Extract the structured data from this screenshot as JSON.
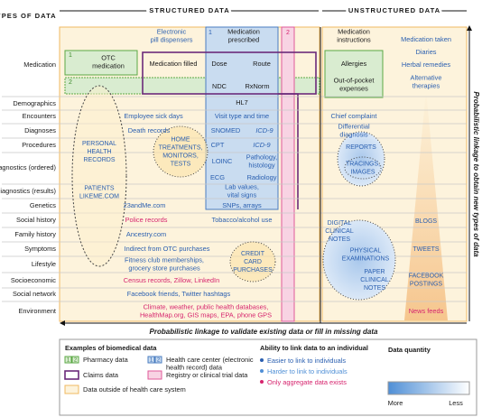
{
  "header": {
    "types": "TYPES OF DATA",
    "structured": "STRUCTURED DATA",
    "unstructured": "UNSTRUCTURED DATA"
  },
  "rows": [
    "Medication",
    "Demographics",
    "Encounters",
    "Diagnoses",
    "Procedures",
    "Diagnostics (ordered)",
    "Diagnostics (results)",
    "Genetics",
    "Social history",
    "Family history",
    "Symptoms",
    "Lifestyle",
    "Socioeconomic",
    "Social network",
    "Environment"
  ],
  "cells": [
    [
      "Electronic",
      "pill dispensers"
    ],
    [
      "Medication",
      "prescribed"
    ],
    [
      "OTC",
      "medication"
    ],
    [
      "Medication filled"
    ],
    [
      "Dose"
    ],
    [
      "Route"
    ],
    [
      "NDC"
    ],
    [
      "RxNorm"
    ],
    [
      "HL7"
    ],
    [
      "Medication",
      "instructions"
    ],
    [
      "Allergies"
    ],
    [
      "Out-of-pocket",
      "expenses"
    ],
    [
      "Medication taken"
    ],
    [
      "Diaries"
    ],
    [
      "Herbal remedies"
    ],
    [
      "Alternative",
      "therapies"
    ],
    [
      "Employee sick days"
    ],
    [
      "Visit type and time"
    ],
    [
      "Chief complaint"
    ],
    [
      "Death records"
    ],
    [
      "SNOMED"
    ],
    [
      "ICD-9"
    ],
    [
      "Differential",
      "diagnosis"
    ],
    [
      "CPT"
    ],
    [
      "ICD-9"
    ],
    [
      "LOINC"
    ],
    [
      "Pathology,",
      "histology"
    ],
    [
      "ECG"
    ],
    [
      "Radiology"
    ],
    [
      "Lab values,",
      "vital signs"
    ],
    [
      "23andMe.com"
    ],
    [
      "SNPs, arrays"
    ],
    [
      "Police records"
    ],
    [
      "Tobacco/alcohol use"
    ],
    [
      "Ancestry.com"
    ],
    [
      "Indirect from OTC purchases"
    ],
    [
      "Fitness club memberships,",
      "grocery store purchases"
    ],
    [
      "Census records, Zillow, LinkedIn"
    ],
    [
      "Facebook friends, Twitter hashtags"
    ],
    [
      "Climate, weather, public health databases,",
      "HealthMap.org, GIS maps, EPA, phone GPS"
    ],
    [
      "News feeds"
    ],
    [
      "PERSONAL",
      "HEALTH",
      "RECORDS"
    ],
    [
      "PATIENTS",
      "LIKEME.COM"
    ],
    [
      "HOME",
      "TREATMENTS,",
      "MONITORS,",
      "TESTS"
    ],
    [
      "REPORTS"
    ],
    [
      "TRACINGS,",
      "IMAGES"
    ],
    [
      "BLOGS"
    ],
    [
      "DIGITAL",
      "CLINICAL",
      "NOTES"
    ],
    [
      "PHYSICAL",
      "EXAMINATIONS"
    ],
    [
      "TWEETS"
    ],
    [
      "CREDIT",
      "CARD",
      "PURCHASES"
    ],
    [
      "PAPER",
      "CLINICAL",
      "NOTES"
    ],
    [
      "FACEBOOK",
      "POSTINGS"
    ],
    [
      "1"
    ],
    [
      "2"
    ],
    [
      "1"
    ],
    [
      "2"
    ]
  ],
  "right_label": "Probabilistic linkage to obtain new types of data",
  "bottom_label": "Probabilistic linkage to validate existing data or fill in missing data",
  "legend": {
    "title": "Examples of biomedical data",
    "icon_numbers": [
      "1",
      "2",
      "1",
      "2"
    ],
    "items": [
      [
        "Pharmacy data"
      ],
      [
        "Health care center (electronic",
        "health record) data"
      ],
      [
        "Claims data"
      ],
      [
        "Registry or clinical trial data"
      ],
      [
        "Data outside of health care system"
      ]
    ],
    "link_title": "Ability to link data to an individual",
    "link_items": [
      "Easier to link to individuals",
      "Harder to link to individuals",
      "Only aggregate data exists"
    ],
    "quantity_title": "Data quantity",
    "more": "More",
    "less": "Less"
  }
}
